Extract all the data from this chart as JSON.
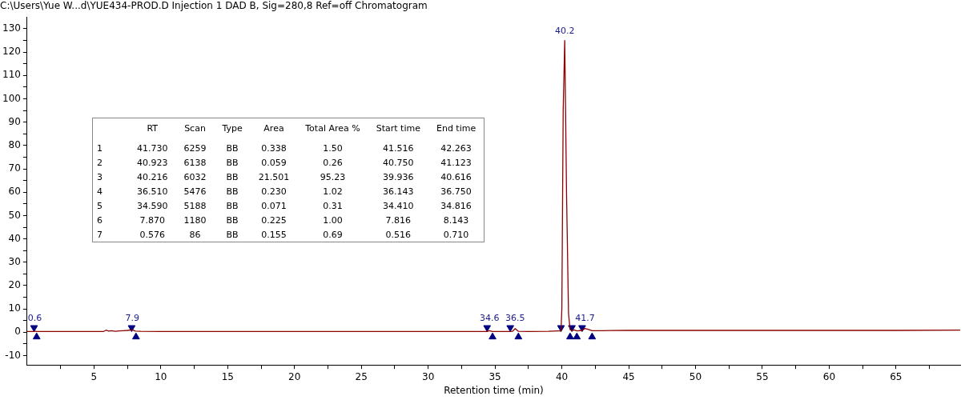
{
  "chart_data": {
    "type": "line",
    "title": "C:\\Users\\Yue W...d\\YUE434-PROD.D Injection 1 DAD B, Sig=280,8 Ref=off Chromatogram",
    "xlabel": "Retention time (min)",
    "xlim": [
      0,
      69.8
    ],
    "ylim": [
      -14,
      135
    ],
    "xticks": [
      {
        "value": 2.5,
        "label": null
      },
      5,
      {
        "value": 7.5,
        "label": null
      },
      10,
      {
        "value": 12.5,
        "label": null
      },
      15,
      {
        "value": 17.5,
        "label": null
      },
      20,
      {
        "value": 22.5,
        "label": null
      },
      25,
      {
        "value": 27.5,
        "label": null
      },
      30,
      {
        "value": 32.5,
        "label": null
      },
      35,
      {
        "value": 37.5,
        "label": null
      },
      40,
      {
        "value": 42.5,
        "label": null
      },
      45,
      {
        "value": 47.5,
        "label": null
      },
      50,
      {
        "value": 52.5,
        "label": null
      },
      55,
      {
        "value": 57.5,
        "label": null
      },
      60,
      {
        "value": 62.5,
        "label": null
      },
      65,
      {
        "value": 67.5,
        "label": null
      }
    ],
    "yticks": [
      -10,
      {
        "value": -5,
        "label": null
      },
      0,
      {
        "value": 5,
        "label": null
      },
      10,
      {
        "value": 15,
        "label": null
      },
      20,
      {
        "value": 25,
        "label": null
      },
      30,
      {
        "value": 35,
        "label": null
      },
      40,
      {
        "value": 45,
        "label": null
      },
      50,
      {
        "value": 55,
        "label": null
      },
      60,
      {
        "value": 65,
        "label": null
      },
      70,
      {
        "value": 75,
        "label": null
      },
      80,
      {
        "value": 85,
        "label": null
      },
      90,
      {
        "value": 95,
        "label": null
      },
      100,
      {
        "value": 105,
        "label": null
      },
      110,
      {
        "value": 115,
        "label": null
      },
      120,
      {
        "value": 125,
        "label": null
      },
      130
    ],
    "grid": false,
    "legend": false,
    "series": [
      {
        "type": "line",
        "color": "#8b0000",
        "marker": "none",
        "x": [
          0,
          0.3,
          0.5,
          0.576,
          0.7,
          1,
          3,
          5,
          5.7,
          5.9,
          6.1,
          6.3,
          6.6,
          6.9,
          7.2,
          7.5,
          7.87,
          8.1,
          8.5,
          10,
          15,
          20,
          25,
          30,
          34.0,
          34.4,
          34.59,
          34.8,
          35.5,
          36.1,
          36.3,
          36.51,
          36.75,
          37.5,
          39.0,
          39.7,
          39.936,
          40.0,
          40.1,
          40.216,
          40.35,
          40.5,
          40.616,
          40.75,
          40.923,
          41.123,
          41.5,
          41.73,
          42.0,
          42.263,
          43,
          45,
          50,
          55,
          60,
          65,
          69.8
        ],
        "values": [
          0.3,
          0.3,
          0.3,
          0.5,
          0.3,
          0.3,
          0.3,
          0.3,
          0.3,
          0.9,
          0.5,
          0.7,
          0.4,
          0.6,
          0.7,
          0.8,
          1.0,
          0.5,
          0.4,
          0.3,
          0.3,
          0.3,
          0.3,
          0.3,
          0.3,
          0.3,
          0.7,
          0.3,
          0.3,
          0.3,
          0.4,
          1.6,
          0.4,
          0.3,
          0.4,
          0.6,
          0.6,
          10,
          95,
          125,
          60,
          8,
          1.2,
          0.7,
          1.0,
          0.6,
          0.8,
          1.6,
          1.2,
          0.7,
          0.7,
          0.8,
          0.8,
          0.8,
          0.8,
          0.8,
          0.9
        ]
      },
      {
        "type": "scatter",
        "color": "#000080",
        "marker": "triangle",
        "x": [
          0.516,
          7.816,
          34.41,
          36.143,
          39.936,
          40.75,
          41.516
        ],
        "values": [
          2,
          2,
          2,
          2,
          2,
          2,
          2
        ]
      },
      {
        "type": "scatter",
        "color": "#000080",
        "marker": "triangle",
        "x": [
          0.71,
          8.143,
          34.816,
          36.75,
          40.616,
          41.123,
          42.263
        ],
        "values": [
          -2,
          -2,
          -2,
          -2,
          -2,
          -2,
          -2
        ]
      }
    ],
    "annotations": [
      {
        "text": "0.6",
        "x": 0.576,
        "y": 2
      },
      {
        "text": "7.9",
        "x": 7.87,
        "y": 2
      },
      {
        "text": "34.6",
        "x": 34.59,
        "y": 2
      },
      {
        "text": "36.5",
        "x": 36.51,
        "y": 2
      },
      {
        "text": "40.2",
        "x": 40.216,
        "y": 125
      },
      {
        "text": "41.7",
        "x": 41.73,
        "y": 2
      },
      "RT",
      "Scan",
      "Type",
      "Area",
      "Total Area %",
      "Start time",
      "End time",
      "1",
      "41.730",
      "6259",
      "BB",
      "0.338",
      "1.50",
      "41.516",
      "42.263",
      "2",
      "40.923",
      "6138",
      "BB",
      "0.059",
      "0.26",
      "40.750",
      "41.123",
      "3",
      "40.216",
      "6032",
      "BB",
      "21.501",
      "95.23",
      "39.936",
      "40.616",
      "4",
      "36.510",
      "5476",
      "BB",
      "0.230",
      "1.02",
      "36.143",
      "36.750",
      "5",
      "34.590",
      "5188",
      "BB",
      "0.071",
      "0.31",
      "34.410",
      "34.816",
      "6",
      "7.870",
      "1180",
      "BB",
      "0.225",
      "1.00",
      "7.816",
      "8.143",
      "7",
      "0.576",
      "86",
      "BB",
      "0.155",
      "0.69",
      "0.516",
      "0.710"
    ]
  }
}
